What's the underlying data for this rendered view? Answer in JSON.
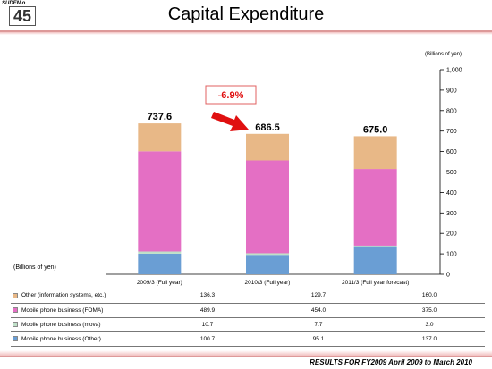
{
  "header": {
    "slide_label": "SUDEN o.",
    "slide_number": "45",
    "title": "Capital Expenditure"
  },
  "units": {
    "top": "(Billions of yen)",
    "left": "(Billions of yen)"
  },
  "change_annotation": "-6.9%",
  "footer": "RESULTS FOR FY2009  April 2009 to March 2010",
  "colors": {
    "other_it": "#e8b887",
    "foma": "#e46fc4",
    "mova": "#bfe0c8",
    "mobile_other": "#6a9ed4",
    "arrow": "#e01010",
    "change_text": "#e01010"
  },
  "chart_data": {
    "type": "bar",
    "stacked": true,
    "categories": [
      "2009/3 (Full year)",
      "2010/3 (Full year)",
      "2011/3 (Full year forecast)"
    ],
    "series": [
      {
        "name": "Mobile phone business (Other)",
        "values": [
          100.7,
          95.1,
          137.0
        ]
      },
      {
        "name": "Mobile phone business (mova)",
        "values": [
          10.7,
          7.7,
          3.0
        ]
      },
      {
        "name": "Mobile phone business (FOMA)",
        "values": [
          489.9,
          454.0,
          375.0
        ]
      },
      {
        "name": "Other (information systems, etc.)",
        "values": [
          136.3,
          129.7,
          160.0
        ]
      }
    ],
    "totals": [
      "737.6",
      "686.5",
      "675.0"
    ],
    "ylim": [
      0,
      1000
    ],
    "yticks": [
      "0",
      "100",
      "200",
      "300",
      "400",
      "500",
      "600",
      "700",
      "800",
      "900",
      "1,000"
    ],
    "axis_position": "right",
    "grid": false
  },
  "table": {
    "rows": [
      {
        "name": "Other (information systems, etc.)",
        "values": [
          "136.3",
          "129.7",
          "160.0"
        ]
      },
      {
        "name": "Mobile phone business (FOMA)",
        "values": [
          "489.9",
          "454.0",
          "375.0"
        ]
      },
      {
        "name": "Mobile phone business (mova)",
        "values": [
          "10.7",
          "7.7",
          "3.0"
        ]
      },
      {
        "name": "Mobile phone business (Other)",
        "values": [
          "100.7",
          "95.1",
          "137.0"
        ]
      }
    ]
  }
}
